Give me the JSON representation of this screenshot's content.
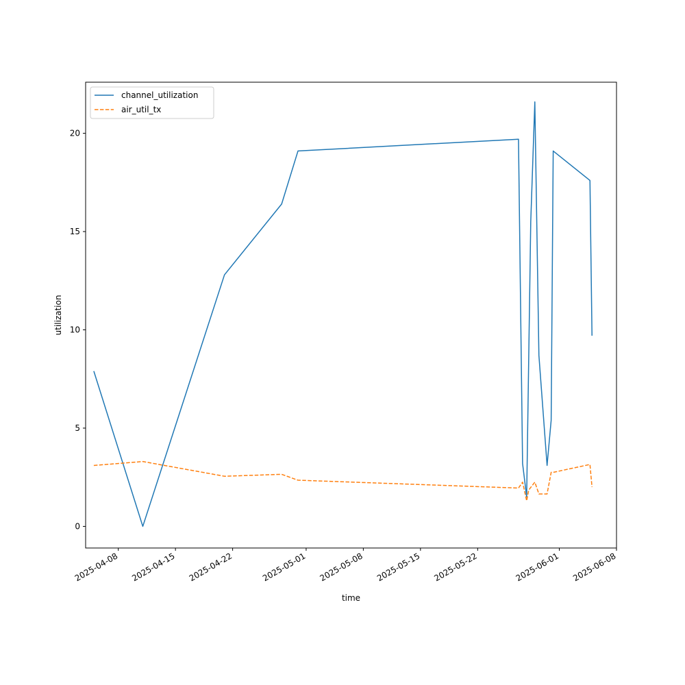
{
  "chart_data": {
    "type": "line",
    "xlabel": "time",
    "ylabel": "utilization",
    "x_axis_type": "date",
    "xlim": [
      "2025-04-04",
      "2025-06-08"
    ],
    "ylim": [
      -1.1,
      22.6
    ],
    "grid": false,
    "legend_position": "top-left",
    "x_ticks": [
      "2025-04-08",
      "2025-04-15",
      "2025-04-22",
      "2025-05-01",
      "2025-05-08",
      "2025-05-15",
      "2025-05-22",
      "2025-06-01",
      "2025-06-08"
    ],
    "y_ticks": [
      0,
      5,
      10,
      15,
      20
    ],
    "series": [
      {
        "name": "channel_utilization",
        "color": "#1f77b4",
        "style": "solid",
        "points": [
          [
            "2025-04-05",
            7.9
          ],
          [
            "2025-04-11",
            0.0
          ],
          [
            "2025-04-21",
            12.8
          ],
          [
            "2025-04-28",
            16.4
          ],
          [
            "2025-04-30",
            19.1
          ],
          [
            "2025-05-27",
            19.7
          ],
          [
            "2025-05-27T12:00",
            3.2
          ],
          [
            "2025-05-28",
            1.5
          ],
          [
            "2025-05-28T12:00",
            15.5
          ],
          [
            "2025-05-29",
            21.6
          ],
          [
            "2025-05-29T12:00",
            8.7
          ],
          [
            "2025-05-30T12:00",
            3.1
          ],
          [
            "2025-05-31",
            5.4
          ],
          [
            "2025-05-31T06:00",
            19.1
          ],
          [
            "2025-06-04T18:00",
            17.6
          ],
          [
            "2025-06-05",
            9.7
          ]
        ]
      },
      {
        "name": "air_util_tx",
        "color": "#ff7f0e",
        "style": "dashed",
        "points": [
          [
            "2025-04-05",
            3.1
          ],
          [
            "2025-04-11",
            3.3
          ],
          [
            "2025-04-21",
            2.55
          ],
          [
            "2025-04-28",
            2.65
          ],
          [
            "2025-04-30",
            2.35
          ],
          [
            "2025-05-27",
            1.95
          ],
          [
            "2025-05-27T12:00",
            2.25
          ],
          [
            "2025-05-28",
            1.3
          ],
          [
            "2025-05-28T06:00",
            1.85
          ],
          [
            "2025-05-29",
            2.25
          ],
          [
            "2025-05-29T12:00",
            1.65
          ],
          [
            "2025-05-30T12:00",
            1.65
          ],
          [
            "2025-05-31",
            2.75
          ],
          [
            "2025-05-31T06:00",
            2.75
          ],
          [
            "2025-06-04T18:00",
            3.15
          ],
          [
            "2025-06-05",
            2.0
          ]
        ]
      }
    ]
  }
}
